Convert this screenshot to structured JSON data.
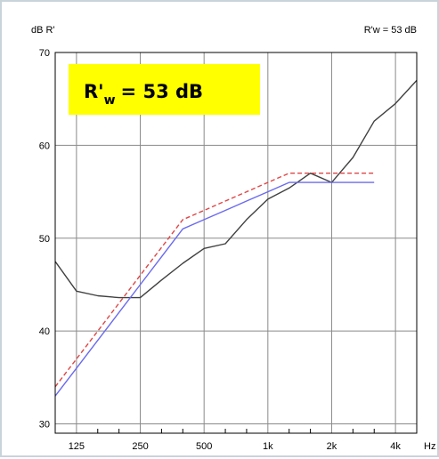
{
  "chart_data": {
    "type": "line",
    "ylabel": "dB  R'",
    "xunit": "Hz",
    "summary_label": "R'w = 53 dB",
    "badge": {
      "prefix": "R'",
      "subscript": "w",
      "value": "=  53 dB",
      "color": "#ffff00"
    },
    "x_ticks": [
      "125",
      "250",
      "500",
      "1k",
      "2k",
      "4k"
    ],
    "y_ticks": [
      "30",
      "40",
      "50",
      "60",
      "70"
    ],
    "ylim": [
      29,
      70
    ],
    "grid": true,
    "x_bands": [
      "100",
      "125",
      "160",
      "200",
      "250",
      "315",
      "400",
      "500",
      "630",
      "800",
      "1k",
      "1.25k",
      "1.6k",
      "2k",
      "2.5k",
      "3.15k",
      "4k",
      "5k"
    ],
    "series": [
      {
        "key": "measured",
        "color": "#404040",
        "dash": "none",
        "x": [
          "100",
          "125",
          "160",
          "200",
          "250",
          "315",
          "400",
          "500",
          "630",
          "800",
          "1k",
          "1.25k",
          "1.6k",
          "2k",
          "2.5k",
          "3.15k",
          "4k",
          "5k"
        ],
        "values": [
          47.5,
          44.3,
          43.8,
          43.6,
          43.6,
          45.5,
          47.3,
          48.9,
          49.4,
          52.0,
          54.2,
          55.4,
          57.0,
          56.0,
          58.7,
          62.6,
          64.5,
          67.0
        ]
      },
      {
        "key": "reference-curve",
        "color": "#6a6aee",
        "dash": "none",
        "x": [
          "100",
          "125",
          "160",
          "200",
          "250",
          "315",
          "400",
          "500",
          "630",
          "800",
          "1k",
          "1.25k",
          "1.6k",
          "2k",
          "2.5k",
          "3.15k"
        ],
        "values": [
          33,
          36,
          39,
          42,
          45,
          48,
          51,
          52,
          53,
          54,
          55,
          56,
          56,
          56,
          56,
          56
        ]
      },
      {
        "key": "shifted-reference",
        "color": "#e04545",
        "dash": "5,3",
        "x": [
          "100",
          "125",
          "160",
          "200",
          "250",
          "315",
          "400",
          "500",
          "630",
          "800",
          "1k",
          "1.25k",
          "1.6k",
          "2k",
          "2.5k",
          "3.15k"
        ],
        "values": [
          34,
          37,
          40,
          43,
          46,
          49,
          52,
          53,
          54,
          55,
          56,
          57,
          57,
          57,
          57,
          57
        ]
      }
    ]
  }
}
